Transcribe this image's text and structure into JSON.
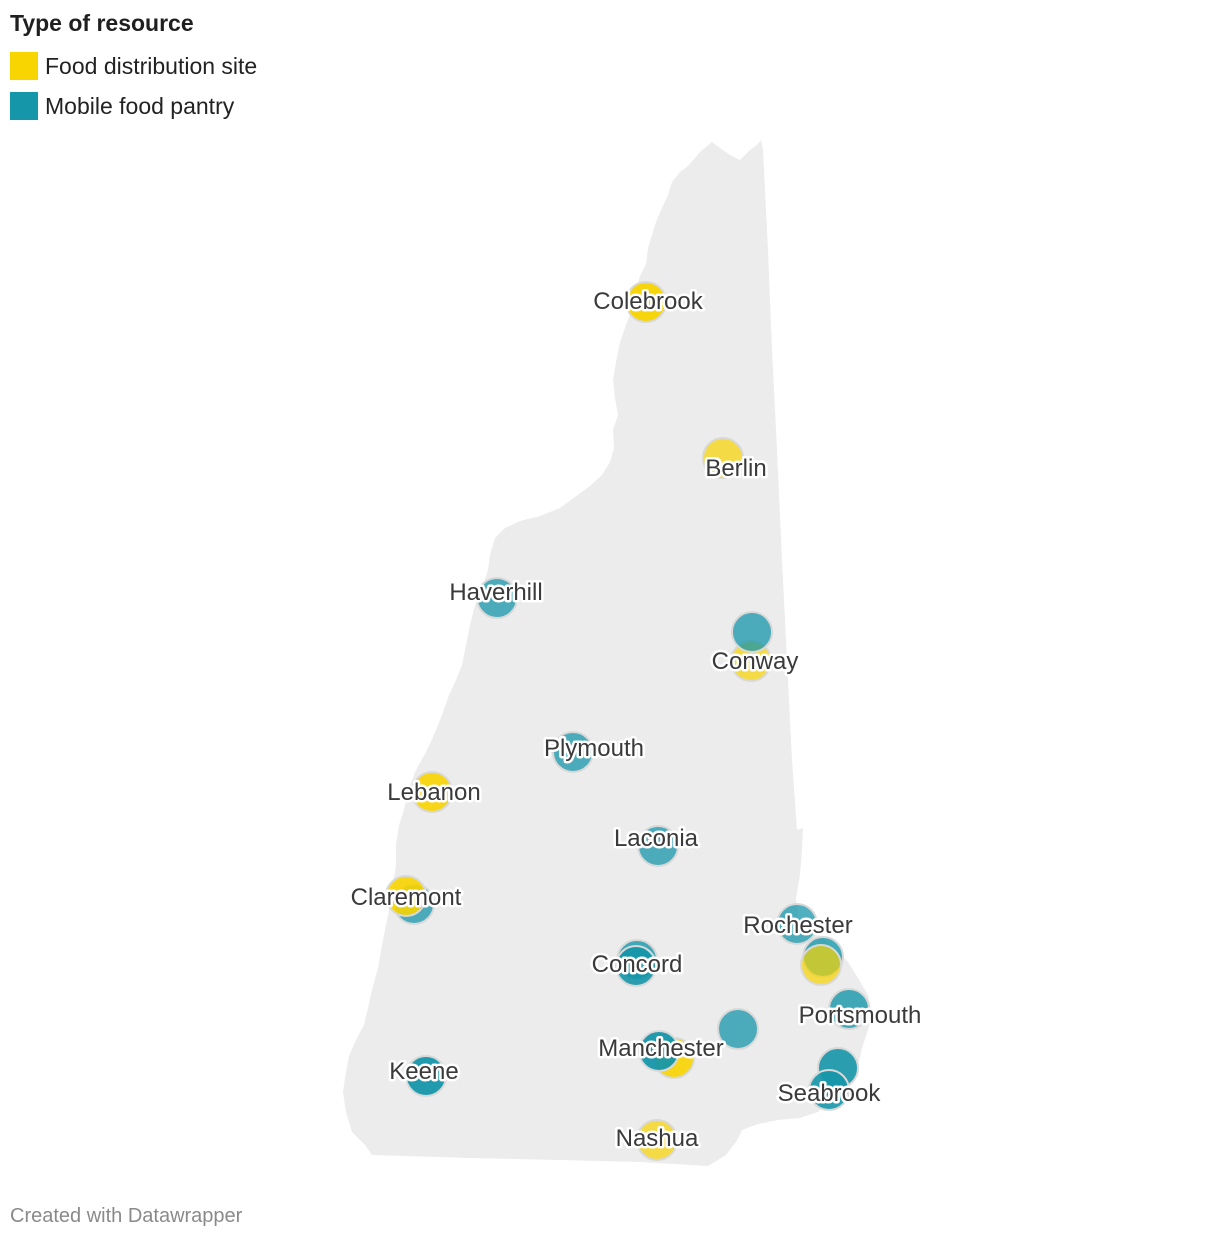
{
  "legend": {
    "title": "Type of resource",
    "items": [
      {
        "label": "Food distribution site",
        "color": "#f8d400"
      },
      {
        "label": "Mobile food pantry",
        "color": "#1596a9"
      }
    ]
  },
  "map": {
    "region_fill": "#ececec",
    "marker_stroke": "#d8d8d8",
    "markers": [
      {
        "type": "food-distribution",
        "color": "#f8d400",
        "opacity": 0.95
      },
      {
        "type": "food-distribution",
        "color": "#f8d400",
        "opacity": 0.7
      },
      {
        "type": "mobile-pantry",
        "color": "#1596a9",
        "opacity": 0.75
      },
      {
        "type": "food-distribution",
        "color": "#f8d400",
        "opacity": 0.7
      },
      {
        "type": "mobile-pantry",
        "color": "#1596a9",
        "opacity": 0.75
      },
      {
        "type": "mobile-pantry",
        "color": "#1596a9",
        "opacity": 0.75
      },
      {
        "type": "food-distribution",
        "color": "#f8d400",
        "opacity": 0.9
      },
      {
        "type": "mobile-pantry",
        "color": "#1596a9",
        "opacity": 0.75
      },
      {
        "type": "mobile-pantry",
        "color": "#1596a9",
        "opacity": 0.75
      },
      {
        "type": "food-distribution",
        "color": "#f8d400",
        "opacity": 0.9
      },
      {
        "type": "mobile-pantry",
        "color": "#1596a9",
        "opacity": 0.75
      },
      {
        "type": "mobile-pantry",
        "color": "#1596a9",
        "opacity": 0.8
      },
      {
        "type": "mobile-pantry",
        "color": "#1596a9",
        "opacity": 0.9
      },
      {
        "type": "mobile-pantry",
        "color": "#1596a9",
        "opacity": 0.8
      },
      {
        "type": "food-distribution",
        "color": "#f8d400",
        "opacity": 0.7
      },
      {
        "type": "mobile-pantry",
        "color": "#1596a9",
        "opacity": 0.75
      },
      {
        "type": "mobile-pantry",
        "color": "#1596a9",
        "opacity": 0.8
      },
      {
        "type": "food-distribution",
        "color": "#f8d400",
        "opacity": 0.9
      },
      {
        "type": "mobile-pantry",
        "color": "#1596a9",
        "opacity": 0.95
      },
      {
        "type": "mobile-pantry",
        "color": "#1596a9",
        "opacity": 0.95
      },
      {
        "type": "mobile-pantry",
        "color": "#1596a9",
        "opacity": 0.9
      },
      {
        "type": "mobile-pantry",
        "color": "#1596a9",
        "opacity": 0.9
      },
      {
        "type": "food-distribution",
        "color": "#f8d400",
        "opacity": 0.7
      }
    ],
    "labels": {
      "colebrook": "Colebrook",
      "berlin": "Berlin",
      "haverhill": "Haverhill",
      "conway": "Conway",
      "plymouth": "Plymouth",
      "lebanon": "Lebanon",
      "laconia": "Laconia",
      "claremont": "Claremont",
      "rochester": "Rochester",
      "concord": "Concord",
      "portsmouth": "Portsmouth",
      "manchester": "Manchester",
      "keene": "Keene",
      "seabrook": "Seabrook",
      "nashua": "Nashua"
    }
  },
  "footer": "Created with Datawrapper"
}
